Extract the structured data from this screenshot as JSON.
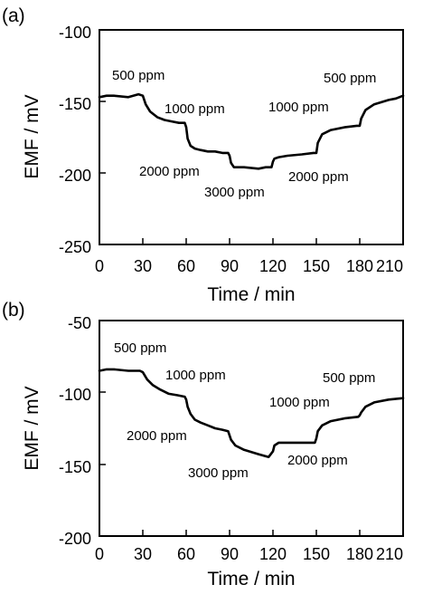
{
  "chart_data": [
    {
      "panel": "(a)",
      "type": "line",
      "xlabel": "Time / min",
      "ylabel": "EMF / mV",
      "xlim": [
        0,
        210
      ],
      "ylim": [
        -250,
        -100
      ],
      "xticks": [
        "0",
        "30",
        "60",
        "90",
        "120",
        "150",
        "180",
        "210"
      ],
      "yticks": [
        "-100",
        "-150",
        "-200",
        "-250"
      ],
      "grid": false,
      "series": [
        {
          "x": [
            0,
            5,
            10,
            20,
            27,
            30,
            32,
            35,
            40,
            45,
            50,
            55,
            59,
            60,
            61,
            63,
            66,
            70,
            75,
            80,
            85,
            89,
            90,
            91,
            93,
            96,
            100,
            110,
            115,
            119,
            120,
            121,
            124,
            130,
            140,
            148,
            150,
            151,
            154,
            160,
            170,
            178,
            180,
            181,
            184,
            190,
            200,
            205,
            210
          ],
          "y": [
            -147,
            -146,
            -146,
            -147,
            -145,
            -146,
            -152,
            -157,
            -161,
            -163,
            -164,
            -165,
            -165,
            -168,
            -176,
            -181,
            -183,
            -184,
            -185,
            -185,
            -186,
            -186,
            -188,
            -193,
            -196,
            -196,
            -196,
            -197,
            -196,
            -196,
            -192,
            -190,
            -189,
            -188,
            -187,
            -186,
            -186,
            -179,
            -173,
            -170,
            -168,
            -167,
            -167,
            -162,
            -156,
            -152,
            -149,
            -148,
            -146
          ]
        }
      ],
      "annotations": [
        "500 ppm",
        "1000 ppm",
        "2000 ppm",
        "3000 ppm",
        "2000 ppm",
        "1000 ppm",
        "500 ppm"
      ]
    },
    {
      "panel": "(b)",
      "type": "line",
      "xlabel": "Time / min",
      "ylabel": "EMF / mV",
      "xlim": [
        0,
        210
      ],
      "ylim": [
        -200,
        -50
      ],
      "xticks": [
        "0",
        "30",
        "60",
        "90",
        "120",
        "150",
        "180",
        "210"
      ],
      "yticks": [
        "-50",
        "-100",
        "-150",
        "-200"
      ],
      "grid": false,
      "series": [
        {
          "x": [
            0,
            5,
            10,
            20,
            28,
            30,
            33,
            37,
            42,
            48,
            54,
            59,
            60,
            61,
            63,
            66,
            70,
            75,
            80,
            85,
            89,
            90,
            91,
            94,
            100,
            110,
            117,
            120,
            121,
            124,
            130,
            140,
            149,
            150,
            151,
            154,
            160,
            170,
            179,
            180,
            181,
            184,
            190,
            200,
            210
          ],
          "y": [
            -85,
            -84,
            -84,
            -85,
            -85,
            -86,
            -91,
            -95,
            -98,
            -101,
            -102,
            -103,
            -105,
            -110,
            -115,
            -119,
            -121,
            -123,
            -125,
            -126,
            -127,
            -130,
            -133,
            -137,
            -140,
            -143,
            -145,
            -141,
            -137,
            -135,
            -135,
            -135,
            -135,
            -132,
            -127,
            -123,
            -120,
            -118,
            -117,
            -116,
            -114,
            -110,
            -107,
            -105,
            -104
          ]
        }
      ],
      "annotations": [
        "500 ppm",
        "1000 ppm",
        "2000 ppm",
        "3000 ppm",
        "2000 ppm",
        "1000 ppm",
        "500 ppm"
      ]
    }
  ]
}
